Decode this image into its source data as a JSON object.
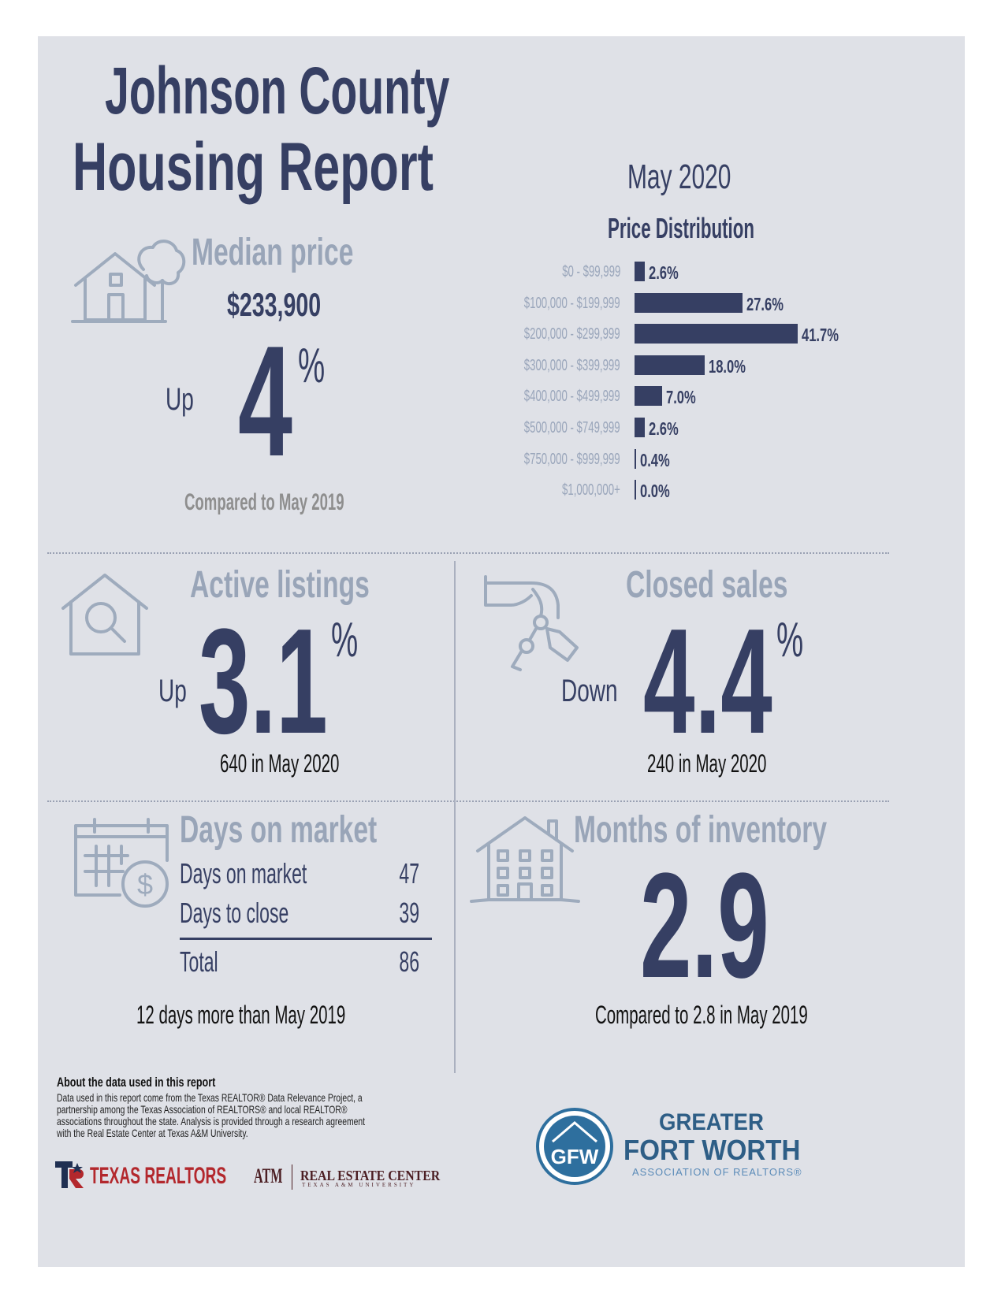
{
  "title_line1": "Johnson County",
  "title_line2": "Housing Report",
  "period": "May 2020",
  "median_price": {
    "heading": "Median price",
    "value": "$233,900",
    "direction": "Up",
    "change": "4",
    "percent_sign": "%",
    "comparison": "Compared to May 2019",
    "icon": "house-tree-icon"
  },
  "chart_data": {
    "type": "bar",
    "title": "Price Distribution",
    "orientation": "horizontal",
    "categories": [
      "$0 - $99,999",
      "$100,000 - $199,999",
      "$200,000 - $299,999",
      "$300,000 - $399,999",
      "$400,000 - $499,999",
      "$500,000 - $749,999",
      "$750,000 - $999,999",
      "$1,000,000+"
    ],
    "values": [
      2.6,
      27.6,
      41.7,
      18.0,
      7.0,
      2.6,
      0.4,
      0.0
    ],
    "labels": [
      "2.6%",
      "27.6%",
      "41.7%",
      "18.0%",
      "7.0%",
      "2.6%",
      "0.4%",
      "0.0%"
    ],
    "xlim": [
      0,
      41.7
    ],
    "color": "#363f63"
  },
  "active_listings": {
    "heading": "Active listings",
    "direction": "Up",
    "change": "3.1",
    "percent_sign": "%",
    "detail": "640 in May 2020",
    "icon": "house-search-icon"
  },
  "closed_sales": {
    "heading": "Closed sales",
    "direction": "Down",
    "change": "4.4",
    "percent_sign": "%",
    "detail": "240 in May 2020",
    "icon": "hand-keys-icon"
  },
  "days_on_market": {
    "heading": "Days on market",
    "rows": [
      {
        "label": "Days on market",
        "value": "47"
      },
      {
        "label": "Days to close",
        "value": "39"
      }
    ],
    "total_label": "Total",
    "total_value": "86",
    "comparison": "12 days more than May 2019",
    "icon": "calendar-dollar-icon"
  },
  "months_inventory": {
    "heading": "Months of inventory",
    "value": "2.9",
    "comparison": "Compared to 2.8 in May 2019",
    "icon": "building-icon"
  },
  "footer": {
    "about_heading": "About the data used in this report",
    "about_lines": [
      "Data used in this report come from the Texas REALTOR® Data Relevance Project, a",
      "partnership among the Texas Association of REALTORS® and local REALTOR®",
      "associations throughout the state. Analysis is provided through a research agreement",
      "with the Real Estate Center at Texas A&M University."
    ],
    "logo_texas_realtors": "TEXAS REALTORS",
    "logo_atm": "ATM",
    "logo_rec": "REAL ESTATE CENTER",
    "logo_rec_sub": "TEXAS A&M UNIVERSITY",
    "gfw_monogram": "GFW",
    "gfw_line1": "GREATER",
    "gfw_line2": "FORT WORTH",
    "gfw_line3": "ASSOCIATION OF REALTORS®"
  },
  "colors": {
    "navy": "#363f63",
    "muted": "#99a5b8",
    "panel": "#dfe1e7",
    "red": "#b3282d",
    "teal": "#2e6f9e"
  }
}
